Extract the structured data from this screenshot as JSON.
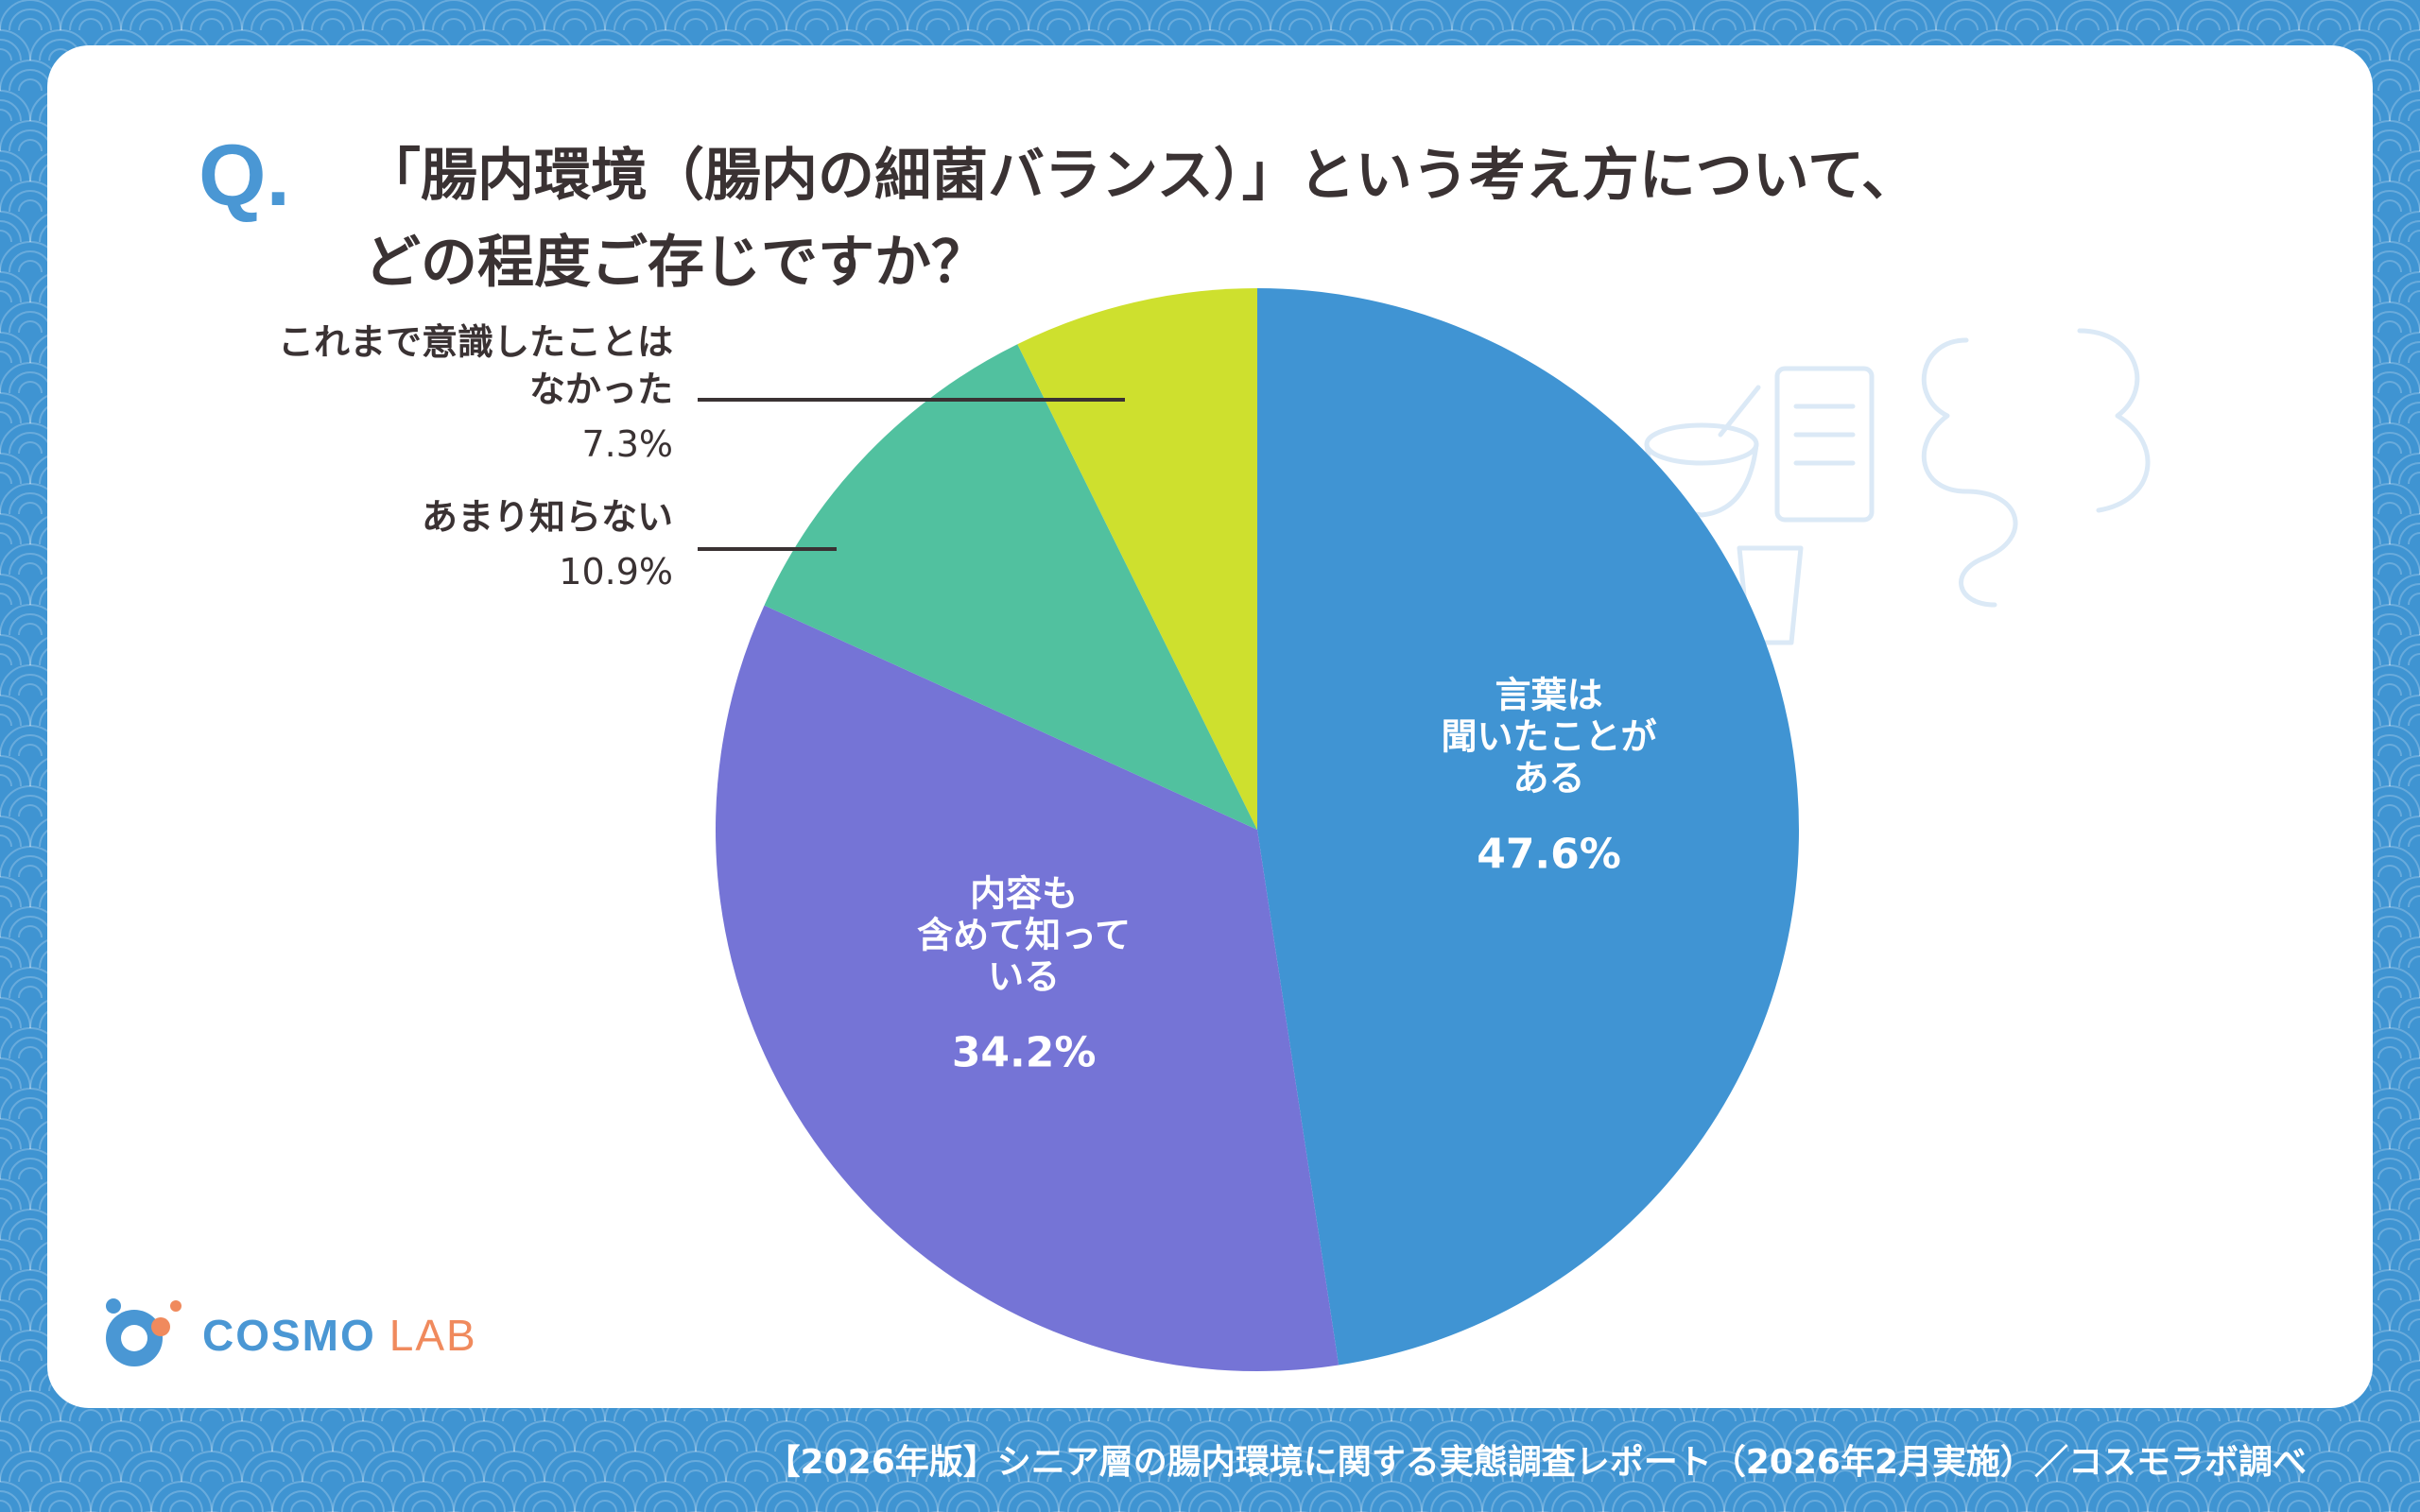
{
  "question": {
    "mark": "Q.",
    "line1": "「腸内環境（腸内の細菌バランス）」という考え方について、",
    "line2": "どの程度ご存じですか？"
  },
  "chart_data": {
    "type": "pie",
    "start_angle_deg": 0,
    "direction": "clockwise",
    "slices": [
      {
        "label": "言葉は聞いたことがある",
        "label_lines": [
          "言葉は",
          "聞いたことが",
          "ある"
        ],
        "value": 47.6,
        "value_text": "47.6%",
        "color": "#4094d3",
        "label_position": "inside"
      },
      {
        "label": "内容も含めて知っている",
        "label_lines": [
          "内容も",
          "含めて知って",
          "いる"
        ],
        "value": 34.2,
        "value_text": "34.2%",
        "color": "#7574d6",
        "label_position": "inside"
      },
      {
        "label": "あまり知らない",
        "label_lines": [
          "あまり知らない"
        ],
        "value": 10.9,
        "value_text": "10.9%",
        "color": "#51c19f",
        "label_position": "outside-left"
      },
      {
        "label": "これまで意識したことはなかった",
        "label_lines": [
          "これまで意識したことは",
          "なかった"
        ],
        "value": 7.3,
        "value_text": "7.3%",
        "color": "#cee02e",
        "label_position": "outside-left"
      }
    ]
  },
  "logo": {
    "brand": "COSMO",
    "suffix": "LAB",
    "color_primary": "#4a97d4",
    "color_accent": "#f08a5d"
  },
  "source": "【2026年版】シニア層の腸内環境に関する実態調査レポート（2026年2月実施）／コスモラボ調べ",
  "colors": {
    "background": "#3f94d2",
    "card": "#ffffff",
    "text": "#3a3233"
  }
}
